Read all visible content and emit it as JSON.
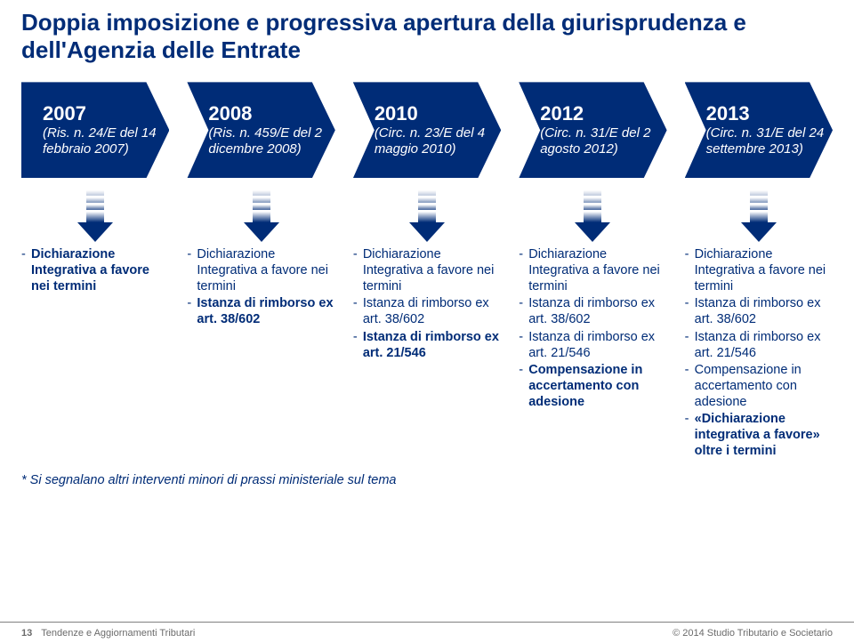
{
  "colors": {
    "primary": "#002c77",
    "gradientTop": "#ffffff",
    "gradientBottom": "#002c77",
    "footerText": "#6b6b6b",
    "footerBorder": "#808080"
  },
  "title": "Doppia imposizione e progressiva apertura della giurisprudenza e dell'Agenzia delle Entrate",
  "timeline": [
    {
      "year": "2007",
      "sub": "(Ris. n. 24/E del 14 febbraio 2007)"
    },
    {
      "year": "2008",
      "sub": "(Ris. n. 459/E del 2 dicembre 2008)"
    },
    {
      "year": "2010",
      "sub": "(Circ. n. 23/E del 4 maggio 2010)"
    },
    {
      "year": "2012",
      "sub": "(Circ. n. 31/E del 2 agosto 2012)"
    },
    {
      "year": "2013",
      "sub": "(Circ. n. 31/E del 24 settembre 2013)"
    }
  ],
  "columns": [
    {
      "items": [
        {
          "parts": [
            {
              "t": "Dichiarazione Integrativa a favore nei termini",
              "style": "bold"
            }
          ]
        }
      ]
    },
    {
      "items": [
        {
          "parts": [
            {
              "t": "Dichiarazione Integrativa a favore nei termini",
              "style": "reg"
            }
          ]
        },
        {
          "parts": [
            {
              "t": "Istanza di rimborso ex art. 38/602",
              "style": "bold"
            }
          ]
        }
      ]
    },
    {
      "items": [
        {
          "parts": [
            {
              "t": "Dichiarazione Integrativa a favore nei termini",
              "style": "reg"
            }
          ]
        },
        {
          "parts": [
            {
              "t": "Istanza di rimborso ex art. 38/602",
              "style": "reg"
            }
          ]
        },
        {
          "parts": [
            {
              "t": "Istanza di rimborso ex art. 21/546",
              "style": "bold"
            }
          ]
        }
      ]
    },
    {
      "items": [
        {
          "parts": [
            {
              "t": "Dichiarazione Integrativa a favore nei termini",
              "style": "reg"
            }
          ]
        },
        {
          "parts": [
            {
              "t": "Istanza di rimborso ex art. 38/602",
              "style": "reg"
            }
          ]
        },
        {
          "parts": [
            {
              "t": "Istanza di rimborso ex art. 21/546",
              "style": "reg"
            }
          ]
        },
        {
          "parts": [
            {
              "t": "Compensazione in accertamento con adesione",
              "style": "bold"
            }
          ]
        }
      ]
    },
    {
      "items": [
        {
          "parts": [
            {
              "t": "Dichiarazione Integrativa a favore nei termini",
              "style": "reg"
            }
          ]
        },
        {
          "parts": [
            {
              "t": "Istanza di rimborso ex art. 38/602",
              "style": "reg"
            }
          ]
        },
        {
          "parts": [
            {
              "t": "Istanza di rimborso ex art. 21/546",
              "style": "reg"
            }
          ]
        },
        {
          "parts": [
            {
              "t": "Compensazione in accertamento con adesione",
              "style": "reg"
            }
          ]
        },
        {
          "parts": [
            {
              "t": "«Dichiarazione integrativa a favore» oltre i termini",
              "style": "bold"
            }
          ]
        }
      ]
    }
  ],
  "footnote": "* Si segnalano altri interventi minori di prassi ministeriale sul tema",
  "footer": {
    "pageNum": "13",
    "leftText": "Tendenze e Aggiornamenti Tributari",
    "right": "© 2014 Studio Tributario e Societario"
  }
}
